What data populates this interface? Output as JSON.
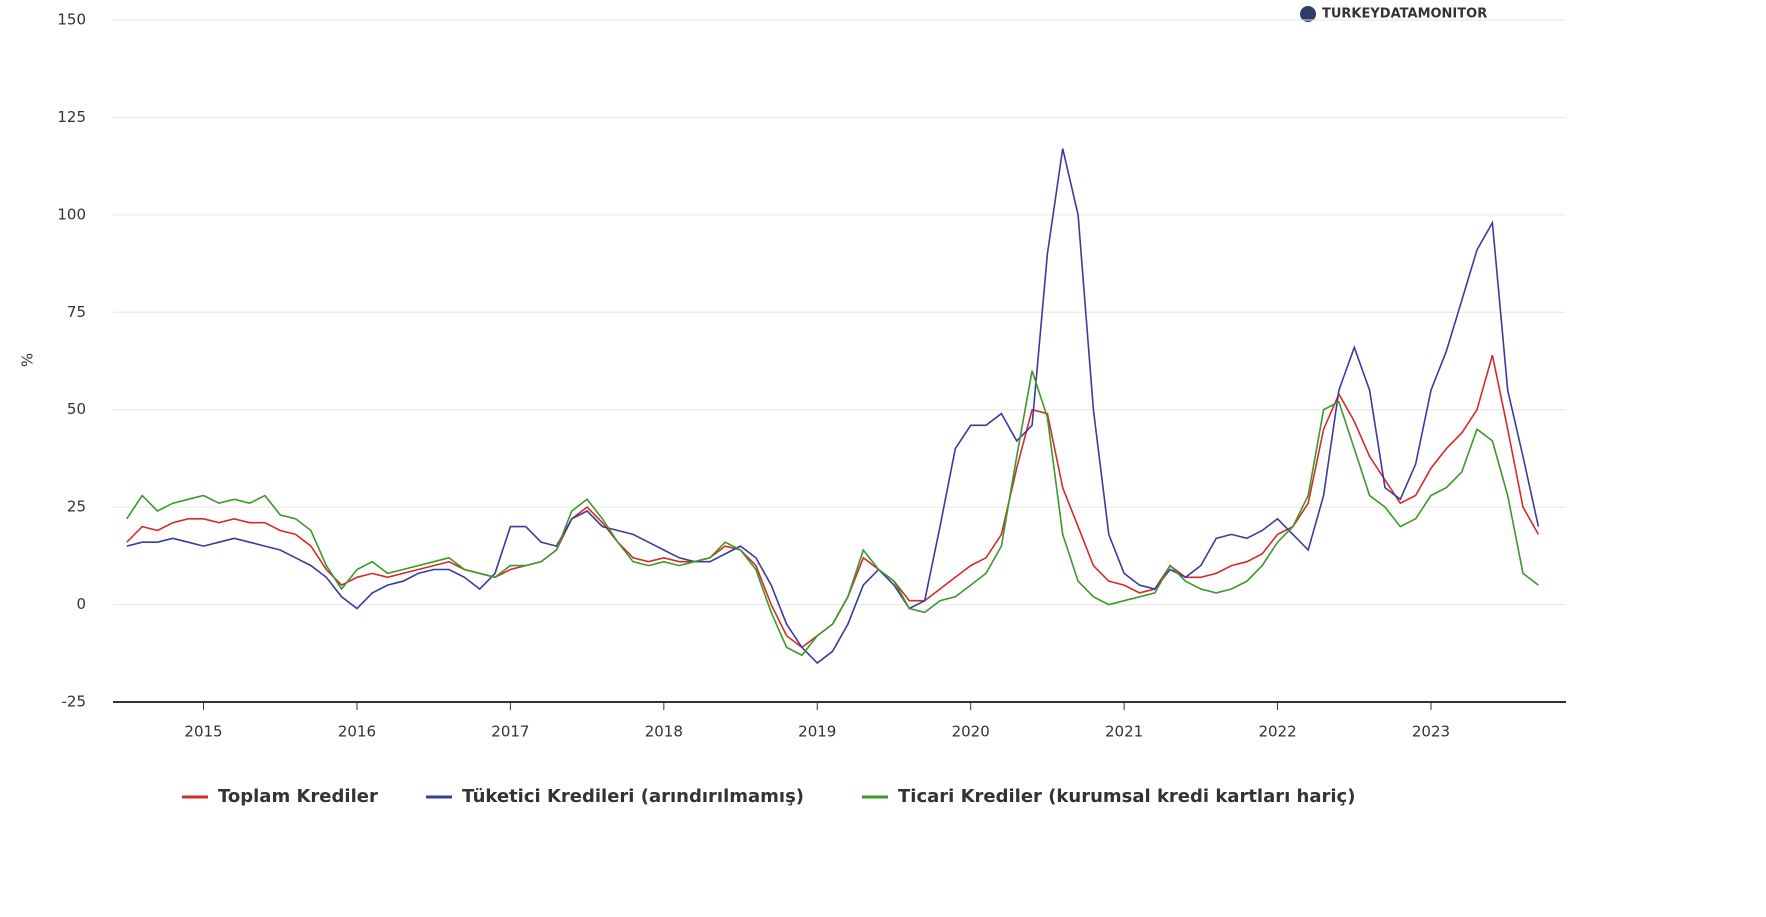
{
  "chart_data": {
    "type": "line",
    "brand": "TURKEYDATAMONITOR",
    "y_label": "%",
    "x": [
      2014.5,
      2014.6,
      2014.7,
      2014.8,
      2014.9,
      2015.0,
      2015.1,
      2015.2,
      2015.3,
      2015.4,
      2015.5,
      2015.6,
      2015.7,
      2015.8,
      2015.9,
      2016.0,
      2016.1,
      2016.2,
      2016.3,
      2016.4,
      2016.5,
      2016.6,
      2016.7,
      2016.8,
      2016.9,
      2017.0,
      2017.1,
      2017.2,
      2017.3,
      2017.4,
      2017.5,
      2017.6,
      2017.7,
      2017.8,
      2017.9,
      2018.0,
      2018.1,
      2018.2,
      2018.3,
      2018.4,
      2018.5,
      2018.6,
      2018.7,
      2018.8,
      2018.9,
      2019.0,
      2019.1,
      2019.2,
      2019.3,
      2019.4,
      2019.5,
      2019.6,
      2019.7,
      2019.8,
      2019.9,
      2020.0,
      2020.1,
      2020.2,
      2020.3,
      2020.4,
      2020.5,
      2020.6,
      2020.7,
      2020.8,
      2020.9,
      2021.0,
      2021.1,
      2021.2,
      2021.3,
      2021.4,
      2021.5,
      2021.6,
      2021.7,
      2021.8,
      2021.9,
      2022.0,
      2022.1,
      2022.2,
      2022.3,
      2022.4,
      2022.5,
      2022.6,
      2022.7,
      2022.8,
      2022.9,
      2023.0,
      2023.1,
      2023.2,
      2023.3,
      2023.4,
      2023.5,
      2023.6,
      2023.7
    ],
    "series": [
      {
        "name": "Toplam Krediler",
        "color": "#d62b2b",
        "values": [
          16,
          20,
          19,
          21,
          22,
          22,
          21,
          22,
          21,
          21,
          19,
          18,
          15,
          9,
          5,
          7,
          8,
          7,
          8,
          9,
          10,
          11,
          9,
          8,
          7,
          9,
          10,
          11,
          14,
          22,
          25,
          21,
          16,
          12,
          11,
          12,
          11,
          11,
          12,
          15,
          14,
          10,
          0,
          -8,
          -11,
          -8,
          -5,
          2,
          12,
          9,
          6,
          1,
          1,
          4,
          7,
          10,
          12,
          18,
          35,
          50,
          49,
          30,
          20,
          10,
          6,
          5,
          3,
          4,
          10,
          7,
          7,
          8,
          10,
          11,
          13,
          18,
          20,
          26,
          45,
          54,
          47,
          38,
          32,
          26,
          28,
          35,
          40,
          44,
          50,
          64,
          45,
          25,
          18
        ]
      },
      {
        "name": "Tüketici Kredileri (arındırılmamış)",
        "color": "#3b3b9e",
        "values": [
          15,
          16,
          16,
          17,
          16,
          15,
          16,
          17,
          16,
          15,
          14,
          12,
          10,
          7,
          2,
          -1,
          3,
          5,
          6,
          8,
          9,
          9,
          7,
          4,
          8,
          20,
          20,
          16,
          15,
          22,
          24,
          20,
          19,
          18,
          16,
          14,
          12,
          11,
          11,
          13,
          15,
          12,
          5,
          -5,
          -11,
          -15,
          -12,
          -5,
          5,
          9,
          5,
          -1,
          1,
          20,
          40,
          46,
          46,
          49,
          42,
          46,
          90,
          117,
          100,
          50,
          18,
          8,
          5,
          4,
          9,
          7,
          10,
          17,
          18,
          17,
          19,
          22,
          18,
          14,
          28,
          55,
          66,
          55,
          30,
          27,
          36,
          55,
          65,
          78,
          91,
          98,
          55,
          38,
          20
        ]
      },
      {
        "name": "Ticari Krediler (kurumsal kredi kartları hariç)",
        "color": "#3a9a2a",
        "values": [
          22,
          28,
          24,
          26,
          27,
          28,
          26,
          27,
          26,
          28,
          23,
          22,
          19,
          10,
          4,
          9,
          11,
          8,
          9,
          10,
          11,
          12,
          9,
          8,
          7,
          10,
          10,
          11,
          14,
          24,
          27,
          22,
          16,
          11,
          10,
          11,
          10,
          11,
          12,
          16,
          14,
          9,
          -2,
          -11,
          -13,
          -8,
          -5,
          2,
          14,
          9,
          6,
          -1,
          -2,
          1,
          2,
          5,
          8,
          15,
          38,
          60,
          48,
          18,
          6,
          2,
          0,
          1,
          2,
          3,
          10,
          6,
          4,
          3,
          4,
          6,
          10,
          16,
          20,
          28,
          50,
          52,
          40,
          28,
          25,
          20,
          22,
          28,
          30,
          34,
          45,
          42,
          28,
          8,
          5
        ]
      }
    ],
    "xlim": [
      2014.41,
      2023.88
    ],
    "xticks": [
      2015,
      2016,
      2017,
      2018,
      2019,
      2020,
      2021,
      2022,
      2023
    ],
    "ylim": [
      -25,
      150
    ],
    "yticks": [
      -25,
      0,
      25,
      50,
      75,
      100,
      125,
      150
    ],
    "grid": true,
    "legend": "bottom"
  }
}
